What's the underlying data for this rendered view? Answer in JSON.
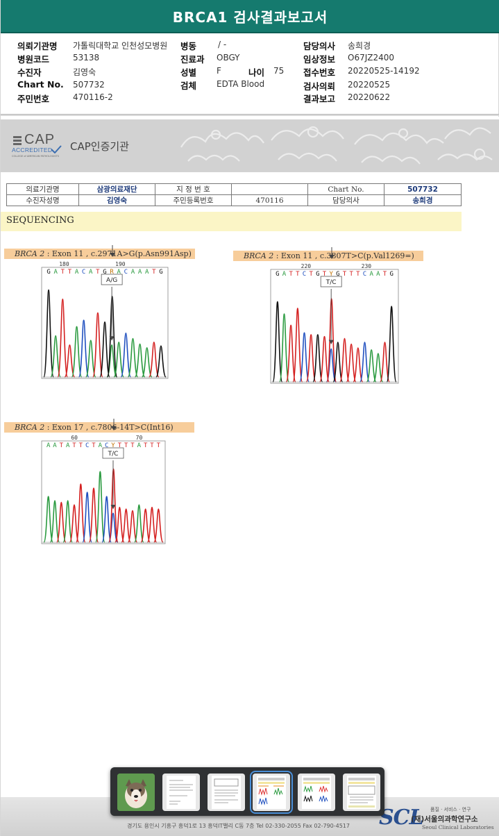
{
  "title": "BRCA1 검사결과보고서",
  "header": {
    "hospital_label": "의뢰기관명",
    "hospital_value": "가톨릭대학교 인천성모병원",
    "ward_label": "병동",
    "ward_value": "/ -",
    "doctor_label": "담당의사",
    "doctor_value": "송희경",
    "hosp_code_label": "병원코드",
    "hosp_code_value": "53138",
    "dept_label": "진료과",
    "dept_value": "OBGY",
    "clinical_label": "임상정보",
    "clinical_value": "O67JZ2400",
    "patient_label": "수진자",
    "patient_value": "김영숙",
    "sex_label": "성별",
    "sex_value": "F",
    "age_label": "나이",
    "age_value": "75",
    "receipt_label": "접수번호",
    "receipt_value": "20220525-14192",
    "chart_label": "Chart No.",
    "chart_value": "507732",
    "specimen_label": "검체",
    "specimen_value": "EDTA Blood",
    "request_label": "검사의뢰",
    "request_value": "20220525",
    "id_label": "주민번호",
    "id_value": "470116-2",
    "report_label": "결과보고",
    "report_value": "20220622"
  },
  "cap": {
    "logo_word": "CAP",
    "logo_accredited": "ACCREDITED",
    "logo_college": "COLLEGE of AMERICAN PATHOLOGISTS",
    "certified": "CAP인증기관"
  },
  "patient_table": {
    "r1": [
      "의료기관명",
      "삼광의료재단",
      "지 정 번 호",
      "",
      "Chart No.",
      "507732"
    ],
    "r2": [
      "수진자성명",
      "김영숙",
      "주민등록번호",
      "470116",
      "담당의사",
      "송희경"
    ]
  },
  "section_title": "SEQUENCING",
  "mutations": [
    {
      "gene": "BRCA 2",
      "desc": " : Exon 11 , c.2971A>G(p.Asn991Asp)",
      "call": "A/G",
      "seq": "GATTACATGRACAAATG",
      "pos1": "180",
      "pos2": "190"
    },
    {
      "gene": "BRCA 2",
      "desc": " : Exon 11 , c.3807T>C(p.Val1269=)",
      "call": "T/C",
      "seq": "GATTCTGTYGTTTCAATG",
      "pos1": "220",
      "pos2": "230"
    },
    {
      "gene": "BRCA 2",
      "desc": " : Exon 17 , c.7806-14T>C(Int16)",
      "call": "T/C",
      "seq": "AATATTCTACYTTTATTT",
      "pos1": "60",
      "pos2": "70"
    }
  ],
  "base_colors": {
    "A": "#2a9a3f",
    "C": "#1f4fbf",
    "G": "#111111",
    "T": "#d42020",
    "R": "#c07000",
    "Y": "#c07000"
  },
  "taskbar": {
    "thumbnails": [
      "dog-photo",
      "report-page-1",
      "report-page-2",
      "report-page-3",
      "report-page-4",
      "report-page-5"
    ],
    "active_index": 3
  },
  "footer": {
    "address": "경기도 용인시 기흥구 흥덕1로 13 흥덕IT밸리 C동 7층 Tel 02-330-2055 Fax 02-790-4517",
    "logo": "SCL",
    "tagline": "품질 · 서비스 · 연구",
    "name": "(재)서울의과학연구소",
    "name_en": "Seoul Clinical Laboratories"
  }
}
